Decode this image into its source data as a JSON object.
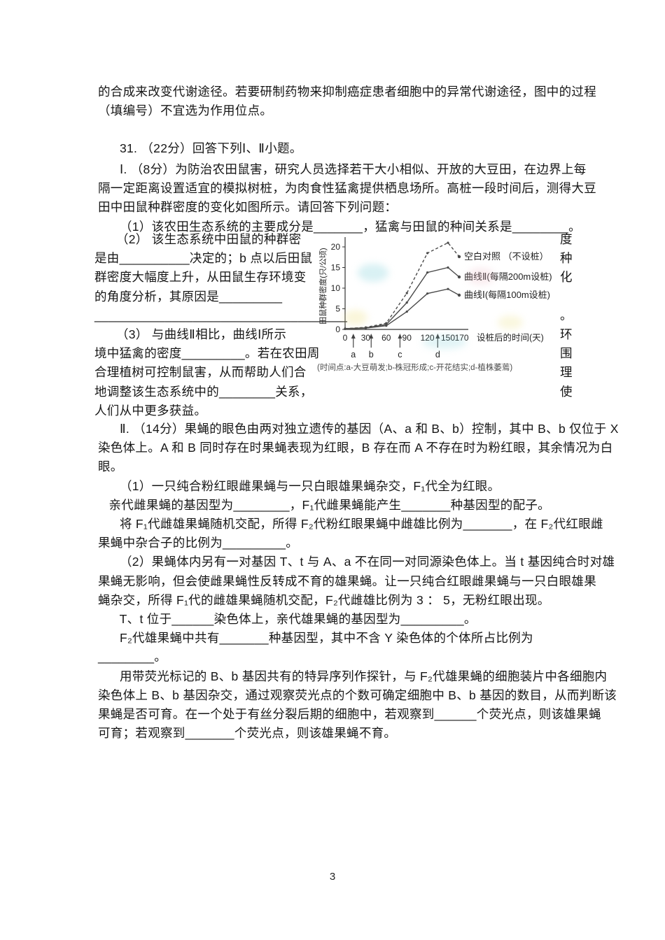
{
  "page_number": "3",
  "intro": {
    "lines": [
      "的合成来改变代谢途径。若要研制药物来抑制癌症患者细胞中的异常代谢途径，图中的过程",
      "（填编号）不宜选为作用位点。"
    ]
  },
  "q31": {
    "header": "      31. （22分）回答下列Ⅰ、Ⅱ小题。",
    "part1_lines": [
      "      Ⅰ. （8分）为防治农田鼠害，研究人员选择若干大小相似、开放的大豆田，在边界上每",
      "隔一定距离设置适宜的模拟树桩，为肉食性猛禽提供栖息场所。高桩一段时间后，测得大豆",
      "田中田鼠种群密度的变化如图所示。请回答下列问题：",
      "      （1）该农田生态系统的主要成分是_______，猛禽与田鼠的种间关系是________。"
    ],
    "wrap": {
      "left_lines": [
        "      （2） 该生态系统中田鼠的种群密",
        "是由__________决定的；b 点以后田鼠",
        "群密度大幅度上升，从田鼠生存环境变",
        "的角度分析，其原因是_________",
        "____________________________________",
        "      （3） 与曲线Ⅱ相比，曲线Ⅰ所示",
        "境中猛禽的密度_________。若在农田周",
        "合理植树可控制鼠害，从而帮助人们合",
        "地调整该生态系统中的________关系，",
        "人们从中更多获益。"
      ],
      "right_chars": [
        "度",
        "种",
        "化",
        "",
        "。",
        "环",
        "围",
        "理",
        "使",
        ""
      ]
    },
    "part2_lines": [
      "      Ⅱ. （14分）果蝇的眼色由两对独立遗传的基因（A、a 和 B、b）控制，其中 B、b 仅位于 X",
      "染色体上。A 和 B 同时存在时果蝇表现为红眼，B 存在而 A 不存在时为粉红眼，其余情况为白",
      "眼。",
      "      （1）一只纯合粉红眼雌果蝇与一只白眼雄果蝇杂交，F₁代全为红眼。",
      "   亲代雌果蝇的基因型为________，F₁代雌果蝇能产生_______种基因型的配子。",
      "      将 F₁代雌雄果蝇随机交配，所得 F₂代粉红眼果蝇中雌雄比例为_______，在 F₂代红眼雌",
      "果蝇中杂合子的比例为_________。",
      "      （2）果蝇体内另有一对基因 T、t 与 A、a 不在同一对同源染色体上。当 t 基因纯合时对雄",
      "果蝇无影响，但会使雌果蝇性反转成不育的雄果蝇。让一只纯合红眼雌果蝇与一只白眼雄果",
      "蝇杂交，所得 F₁代的雌雄果蝇随机交配，F₂代雌雄比例为 3 ： 5，无粉红眼出现。",
      "      T、t 位于______染色体上，亲代雄果蝇的基因型为_________。",
      "      F₂代雄果蝇中共有_______种基因型，其中不含 Y 染色体的个体所占比例为",
      "________。",
      "      用带荧光标记的 B、b 基因共有的特异序列作探针，与 F₂代雄果蝇的细胞装片中各细胞内",
      "染色体上 B、b 基因杂交，通过观察荧光点的个数可确定细胞中 B、b 基因的数目，从而判断该",
      "果蝇是否可育。在一个处于有丝分裂后期的细胞中，若观察到______个荧光点，则该雄果蝇",
      "可育；若观察到_______个荧光点，则该雄果蝇不育。"
    ]
  },
  "chart_data": {
    "type": "line",
    "title": "",
    "xlabel": "设桩后的时间(天)",
    "ylabel": "田鼠种群密度(只/公顷)",
    "x": [
      0,
      30,
      60,
      90,
      120,
      150
    ],
    "xticks": [
      0,
      30,
      60,
      90,
      120,
      150,
      170
    ],
    "yticks": [
      0,
      5,
      10,
      15,
      20
    ],
    "ylim": [
      0,
      22
    ],
    "grid": false,
    "legend_position": "right-of-line-ends",
    "series": [
      {
        "name": "空白对照 （不设桩）",
        "style": "dashed",
        "values": [
          0.2,
          0.5,
          1.5,
          8.8,
          18.5,
          21.0
        ],
        "end_value": 15.5
      },
      {
        "name": "曲线Ⅱ(每隔200m设桩)",
        "style": "solid",
        "values": [
          0.2,
          0.4,
          1.2,
          6.5,
          13.8,
          15.0
        ],
        "end_value": 11.2
      },
      {
        "name": "曲线Ⅰ(每隔100m设桩)",
        "style": "solid",
        "values": [
          0.1,
          0.3,
          0.9,
          4.3,
          8.7,
          9.8
        ],
        "end_value": 7.6
      }
    ],
    "events": [
      {
        "label": "a",
        "day": 12
      },
      {
        "label": "b",
        "day": 38
      },
      {
        "label": "c",
        "day": 80
      },
      {
        "label": "d",
        "day": 135
      }
    ],
    "caption": "(时间点:a-大豆萌发;b-株冠形成;c-开花结实;d-植株萎蔫)"
  }
}
